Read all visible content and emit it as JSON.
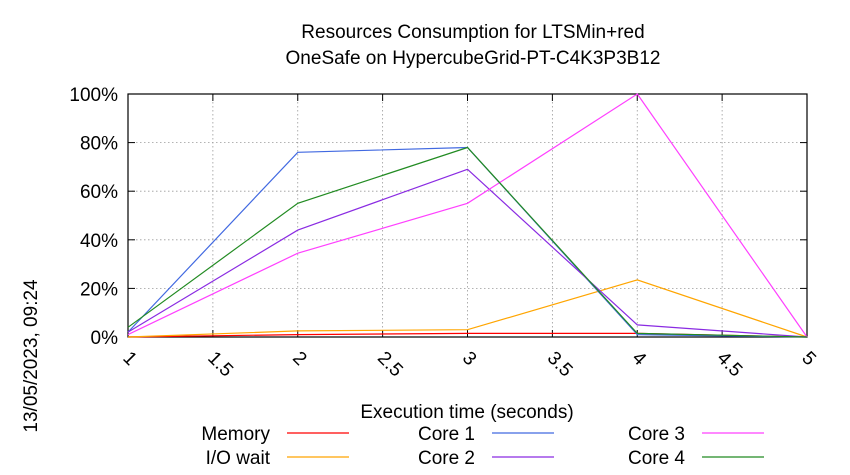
{
  "side_label": "13/05/2023, 09:24",
  "chart_data": {
    "type": "line",
    "title": [
      "Resources Consumption for LTSMin+red",
      "OneSafe on HypercubeGrid-PT-C4K3P3B12"
    ],
    "xlabel": "Execution time (seconds)",
    "ylabel": "",
    "xlim": [
      1,
      5
    ],
    "ylim": [
      0,
      100
    ],
    "x_ticks": [
      "1",
      "1.5",
      "2",
      "2.5",
      "3",
      "3.5",
      "4",
      "4.5",
      "5"
    ],
    "y_ticks": [
      "0%",
      "20%",
      "40%",
      "60%",
      "80%",
      "100%"
    ],
    "grid": true,
    "legend_position": "bottom",
    "x": [
      1,
      2,
      3,
      4,
      5
    ],
    "series": [
      {
        "name": "Memory",
        "color": "#ff0000",
        "values": [
          0,
          1,
          1.5,
          1.5,
          0
        ]
      },
      {
        "name": "I/O wait",
        "color": "#ffa500",
        "values": [
          0,
          2.5,
          3,
          23.5,
          0
        ]
      },
      {
        "name": "Core 1",
        "color": "#4169e1",
        "values": [
          2,
          76,
          78,
          1,
          0
        ]
      },
      {
        "name": "Core 2",
        "color": "#8a2be2",
        "values": [
          2,
          44,
          69,
          5,
          0
        ]
      },
      {
        "name": "Core 3",
        "color": "#ff40ff",
        "values": [
          1,
          34.5,
          55,
          100,
          0
        ]
      },
      {
        "name": "Core 4",
        "color": "#228b22",
        "values": [
          4,
          55,
          78,
          1.5,
          0
        ]
      }
    ]
  }
}
